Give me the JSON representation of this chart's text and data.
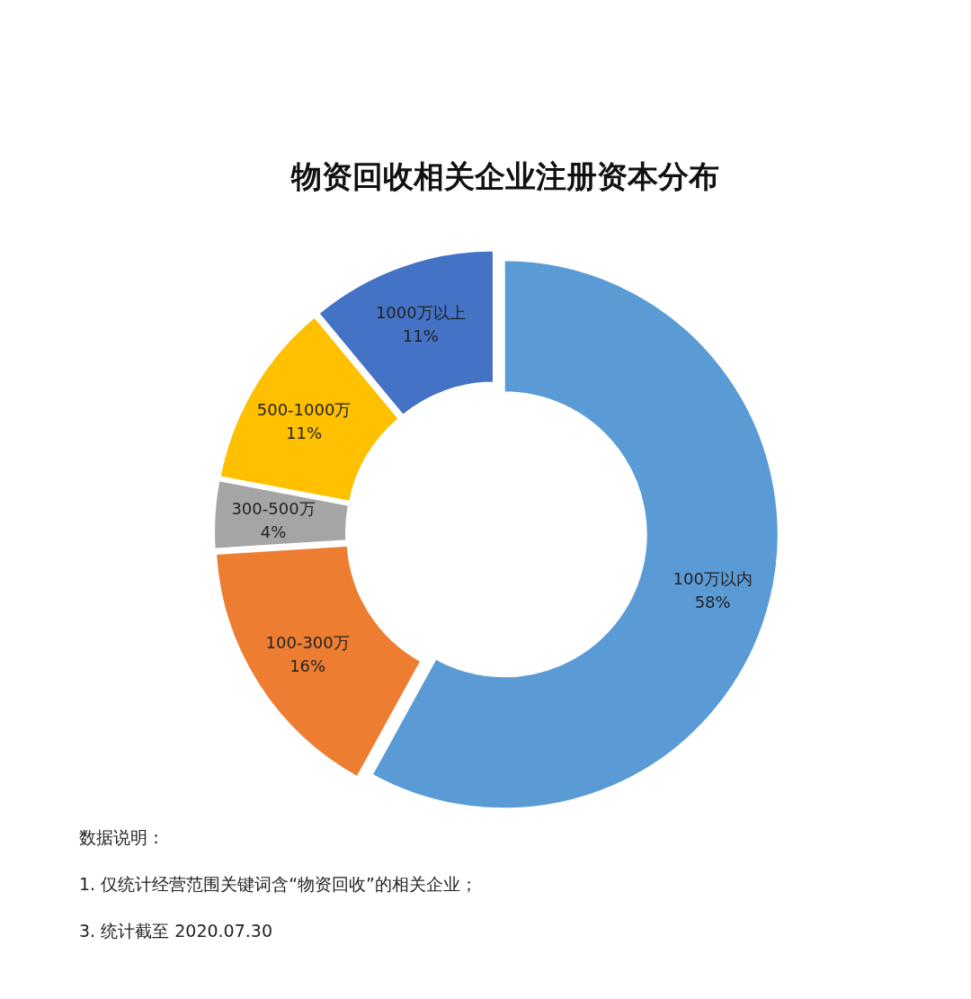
{
  "chart_data": {
    "type": "donut",
    "title": "物资回收相关企业注册资本分布",
    "categories": [
      "100万以内",
      "100-300万",
      "300-500万",
      "500-1000万",
      "1000万以上"
    ],
    "values": [
      58,
      16,
      4,
      11,
      11
    ],
    "colors": [
      "#5b9bd5",
      "#ed7d31",
      "#a5a5a5",
      "#ffc000",
      "#4472c4"
    ],
    "value_labels": [
      "58%",
      "16%",
      "4%",
      "11%",
      "11%"
    ],
    "annotations": [
      "数据说明：",
      "1. 仅统计经营范围关键词含“物资回收”的相关企业；",
      "3. 统计截至 2020.07.30"
    ]
  }
}
